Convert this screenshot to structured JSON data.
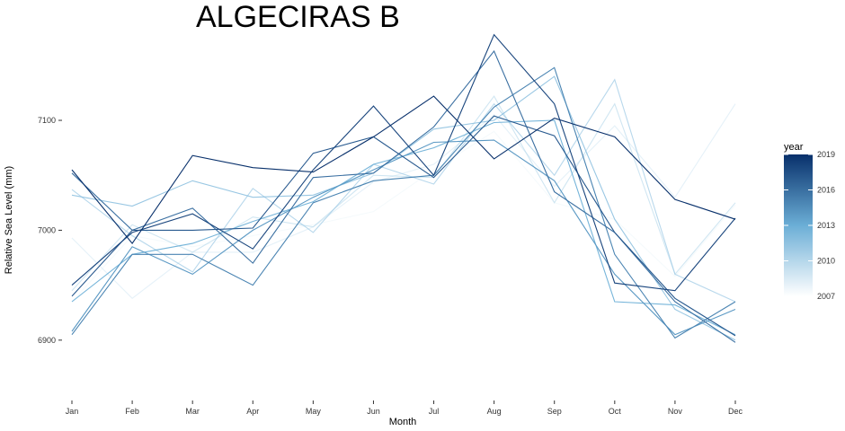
{
  "chart_data": {
    "type": "line",
    "title": "ALGECIRAS B",
    "xlabel": "Month",
    "ylabel": "Relative Sea Level (mm)",
    "categories": [
      "Jan",
      "Feb",
      "Mar",
      "Apr",
      "May",
      "Jun",
      "Jul",
      "Aug",
      "Sep",
      "Oct",
      "Nov",
      "Dec"
    ],
    "ylim": [
      6850,
      7185
    ],
    "yticks": [
      6900,
      7000,
      7100
    ],
    "grid": false,
    "legend": {
      "title": "year",
      "placement": "right",
      "range": [
        2007,
        2019
      ],
      "labels": [
        "2019",
        "2016",
        "2013",
        "2010",
        "2007"
      ],
      "label_values": [
        2019,
        2016,
        2013,
        2010,
        2007
      ],
      "color_low": "#ffffff",
      "color_high": "#08306b"
    },
    "series": [
      {
        "year": 2007,
        "values": [
          6868,
          6932,
          6899,
          6934,
          6962,
          7030,
          7045,
          7092,
          6982,
          6895,
          6872,
          6880
        ]
      },
      {
        "year": 2008,
        "values": [
          6935,
          6995,
          6985,
          6995,
          7005,
          7017,
          7055,
          7090,
          7025,
          7010,
          6958,
          7023
        ]
      },
      {
        "year": 2009,
        "values": [
          6993,
          6938,
          6980,
          6980,
          7003,
          7044,
          7060,
          7105,
          7040,
          7095,
          7030,
          7115
        ]
      },
      {
        "year": 2010,
        "values": [
          6945,
          7005,
          6980,
          7012,
          7003,
          7050,
          7048,
          7122,
          7025,
          7115,
          6960,
          7025
        ]
      },
      {
        "year": 2011,
        "values": [
          7037,
          6995,
          6962,
          7038,
          6998,
          7060,
          7042,
          7115,
          7050,
          7137,
          6960,
          6935
        ]
      },
      {
        "year": 2012,
        "values": [
          7032,
          7022,
          7045,
          7030,
          7032,
          7052,
          7092,
          7100,
          7140,
          7010,
          6928,
          6900
        ]
      },
      {
        "year": 2013,
        "values": [
          6935,
          6978,
          6988,
          7008,
          7026,
          7060,
          7075,
          7098,
          7100,
          6935,
          6932,
          6905
        ]
      },
      {
        "year": 2014,
        "values": [
          6908,
          6985,
          6960,
          7000,
          7030,
          7055,
          7080,
          7082,
          7045,
          6960,
          6905,
          6928
        ]
      },
      {
        "year": 2015,
        "values": [
          6905,
          6978,
          6978,
          6950,
          7025,
          7045,
          7050,
          7112,
          7148,
          6978,
          6902,
          6935
        ]
      },
      {
        "year": 2016,
        "values": [
          7052,
          7000,
          7020,
          6970,
          7048,
          7052,
          7094,
          7163,
          7035,
          6998,
          6935,
          6898
        ]
      },
      {
        "year": 2017,
        "values": [
          6940,
          7000,
          7000,
          7002,
          7070,
          7085,
          7048,
          7104,
          7086,
          6998,
          6938,
          6904
        ]
      },
      {
        "year": 2018,
        "values": [
          6950,
          6998,
          7015,
          6983,
          7055,
          7113,
          7050,
          7178,
          7115,
          6952,
          6945,
          7011
        ]
      },
      {
        "year": 2019,
        "values": [
          7055,
          6988,
          7068,
          7057,
          7053,
          7085,
          7122,
          7065,
          7102,
          7085,
          7028,
          7010
        ]
      }
    ]
  }
}
